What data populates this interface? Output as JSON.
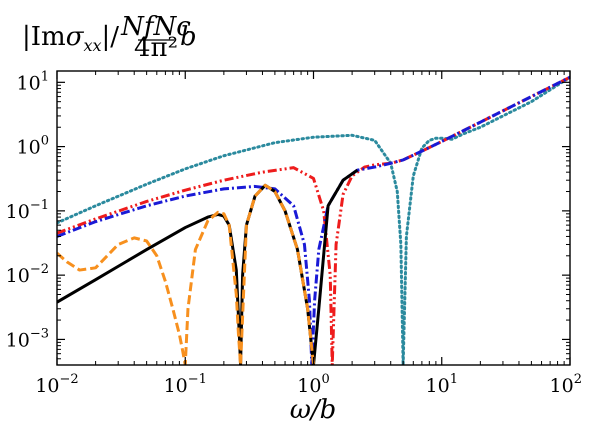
{
  "chart_data": {
    "type": "line",
    "title": "|Im σxx|/(NfNc/4π²)b",
    "title_parts": {
      "left": "|Im",
      "sigma": "σ",
      "sub": "xx",
      "mid": "|/",
      "frac_num": "NfNc",
      "frac_den": "4π²",
      "right": "b"
    },
    "xlabel": "ω/b",
    "ylabel": "",
    "x_scale": "log",
    "y_scale": "log",
    "xlim": [
      0.01,
      100
    ],
    "ylim": [
      0.0004,
      15
    ],
    "x_ticks": [
      {
        "value": 0.01,
        "base": "10",
        "exp": "−2"
      },
      {
        "value": 0.1,
        "base": "10",
        "exp": "−1"
      },
      {
        "value": 1,
        "base": "10",
        "exp": "0"
      },
      {
        "value": 10,
        "base": "10",
        "exp": "1"
      },
      {
        "value": 100,
        "base": "10",
        "exp": "2"
      }
    ],
    "y_ticks": [
      {
        "value": 0.001,
        "base": "10",
        "exp": "−3"
      },
      {
        "value": 0.01,
        "base": "10",
        "exp": "−2"
      },
      {
        "value": 0.1,
        "base": "10",
        "exp": "−1"
      },
      {
        "value": 1,
        "base": "10",
        "exp": "0"
      },
      {
        "value": 10,
        "base": "10",
        "exp": "1"
      }
    ],
    "grid": false,
    "legend": "none",
    "series": [
      {
        "color": "#2b8a9e",
        "dash": "dotted",
        "x": [
          0.01,
          0.02,
          0.05,
          0.1,
          0.2,
          0.5,
          1,
          2,
          3,
          4,
          4.5,
          4.8,
          5,
          5.3,
          6,
          7,
          8,
          9,
          10,
          12,
          15,
          20,
          50,
          100
        ],
        "y": [
          0.065,
          0.12,
          0.26,
          0.45,
          0.72,
          1.15,
          1.4,
          1.5,
          1.25,
          0.55,
          0.2,
          0.03,
          0.0004,
          0.04,
          0.35,
          0.95,
          1.25,
          1.35,
          1.35,
          1.3,
          1.6,
          2.0,
          5.0,
          12.0
        ]
      },
      {
        "color": "#ee1c1c",
        "dash": "dashdotdot",
        "x": [
          0.01,
          0.02,
          0.05,
          0.1,
          0.2,
          0.4,
          0.7,
          1.0,
          1.2,
          1.35,
          1.4,
          1.5,
          1.7,
          2.0,
          2.5,
          3,
          4,
          5,
          7,
          10,
          20,
          50,
          100
        ],
        "y": [
          0.045,
          0.075,
          0.14,
          0.21,
          0.3,
          0.4,
          0.47,
          0.32,
          0.1,
          0.01,
          0.0004,
          0.03,
          0.18,
          0.35,
          0.48,
          0.52,
          0.55,
          0.62,
          0.85,
          1.2,
          2.4,
          6.0,
          12.0
        ]
      },
      {
        "color": "#1a1ad6",
        "dash": "dashdot",
        "x": [
          0.01,
          0.02,
          0.05,
          0.1,
          0.2,
          0.35,
          0.5,
          0.7,
          0.85,
          0.93,
          0.97,
          1.02,
          1.1,
          1.3,
          1.7,
          2.2,
          3,
          4,
          5,
          7,
          10,
          20,
          50,
          100
        ],
        "y": [
          0.04,
          0.068,
          0.12,
          0.17,
          0.22,
          0.24,
          0.22,
          0.12,
          0.03,
          0.004,
          0.0004,
          0.004,
          0.025,
          0.12,
          0.3,
          0.43,
          0.48,
          0.55,
          0.62,
          0.85,
          1.2,
          2.4,
          6.0,
          12.0
        ]
      },
      {
        "color": "#000000",
        "dash": "solid",
        "x": [
          0.01,
          0.02,
          0.05,
          0.1,
          0.15,
          0.18,
          0.2,
          0.22,
          0.25,
          0.265,
          0.27,
          0.28,
          0.3,
          0.35,
          0.42,
          0.5,
          0.6,
          0.75,
          0.9,
          1.0,
          1.1,
          1.3,
          1.7,
          2.2
        ],
        "y": [
          0.0038,
          0.0085,
          0.025,
          0.055,
          0.08,
          0.088,
          0.083,
          0.06,
          0.012,
          0.001,
          0.0004,
          0.01,
          0.06,
          0.17,
          0.25,
          0.2,
          0.1,
          0.025,
          0.003,
          0.0004,
          0.003,
          0.12,
          0.3,
          0.43
        ]
      },
      {
        "color": "#f7901e",
        "dash": "dashed",
        "x": [
          0.01,
          0.012,
          0.015,
          0.02,
          0.03,
          0.04,
          0.05,
          0.06,
          0.07,
          0.08,
          0.09,
          0.095,
          0.1,
          0.105,
          0.12,
          0.15,
          0.18,
          0.2,
          0.22,
          0.25,
          0.26,
          0.27,
          0.3,
          0.35,
          0.42,
          0.5,
          0.6,
          0.75,
          0.9,
          1.0
        ],
        "y": [
          0.022,
          0.016,
          0.012,
          0.013,
          0.03,
          0.038,
          0.034,
          0.02,
          0.008,
          0.003,
          0.0012,
          0.0007,
          0.0004,
          0.003,
          0.025,
          0.07,
          0.095,
          0.09,
          0.06,
          0.005,
          0.0012,
          0.0004,
          0.06,
          0.17,
          0.25,
          0.2,
          0.1,
          0.025,
          0.003,
          0.0004
        ]
      }
    ]
  }
}
